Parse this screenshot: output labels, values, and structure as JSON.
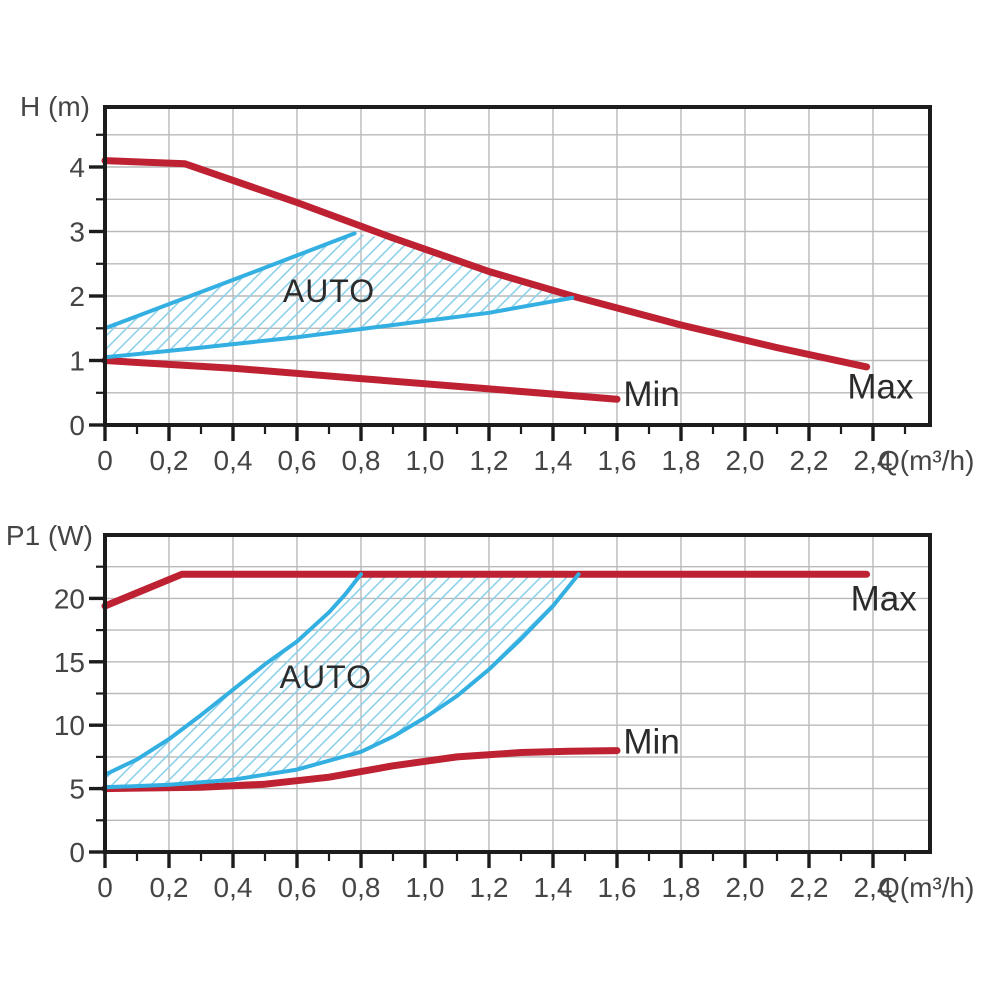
{
  "colors": {
    "curve_red": "#BE2132",
    "auto_blue": "#33AFE1",
    "hatch_blue": "#8FD0EA",
    "grid_gray": "#B9B9B9",
    "axis_black": "#1C1C1C",
    "label_gray": "#454545",
    "annotation_dark": "#2B2B2B"
  },
  "chart_data": [
    {
      "type": "line",
      "ylabel": "H (m)",
      "xlabel": "Q(m³/h)",
      "xlim": [
        0,
        2.58
      ],
      "ylim": [
        0,
        4.93
      ],
      "grid": true,
      "x_axis": {
        "major_labels": [
          "0",
          "0,2",
          "0,4",
          "0,6",
          "0,8",
          "1,0",
          "1,2",
          "1,4",
          "1,6",
          "1,8",
          "2,0",
          "2,2",
          "2,4"
        ],
        "major_step": 0.2,
        "minor_step": 0.1,
        "max_minor": 2.5
      },
      "y_axis": {
        "major_labels": [
          "0",
          "1",
          "2",
          "3",
          "4"
        ],
        "major_step": 1,
        "minor_step": 0.5,
        "max_minor": 4.5
      },
      "series": [
        {
          "name": "Max",
          "color_key": "red",
          "points": [
            [
              0,
              4.1
            ],
            [
              0.25,
              4.05
            ],
            [
              0.6,
              3.45
            ],
            [
              0.9,
              2.9
            ],
            [
              1.2,
              2.38
            ],
            [
              1.46,
              2.0
            ],
            [
              1.8,
              1.55
            ],
            [
              2.1,
              1.2
            ],
            [
              2.38,
              0.9
            ]
          ]
        },
        {
          "name": "Min",
          "color_key": "red",
          "points": [
            [
              0,
              1.0
            ],
            [
              0.4,
              0.88
            ],
            [
              0.8,
              0.72
            ],
            [
              1.2,
              0.56
            ],
            [
              1.6,
              0.4
            ]
          ]
        },
        {
          "name": "Auto-upper",
          "color_key": "blue",
          "points": [
            [
              0,
              1.5
            ],
            [
              0.4,
              2.25
            ],
            [
              0.78,
              2.97
            ]
          ]
        },
        {
          "name": "Auto-lower",
          "color_key": "blue",
          "points": [
            [
              0,
              1.05
            ],
            [
              0.3,
              1.2
            ],
            [
              0.6,
              1.36
            ],
            [
              0.9,
              1.55
            ],
            [
              1.2,
              1.74
            ],
            [
              1.46,
              1.97
            ]
          ]
        }
      ],
      "auto_region": [
        [
          0,
          1.5
        ],
        [
          0.4,
          2.25
        ],
        [
          0.78,
          2.97
        ],
        [
          0.9,
          2.88
        ],
        [
          1.2,
          2.38
        ],
        [
          1.46,
          2.0
        ],
        [
          1.2,
          1.74
        ],
        [
          0.9,
          1.55
        ],
        [
          0.6,
          1.36
        ],
        [
          0.3,
          1.2
        ],
        [
          0,
          1.05
        ]
      ],
      "annotations": [
        {
          "text": "AUTO",
          "q": 0.7,
          "v": 2.08,
          "anchor": "middle",
          "size": "auto"
        },
        {
          "text": "Min",
          "q": 1.62,
          "v": 0.48,
          "anchor": "start",
          "size": "minmax"
        },
        {
          "text": "Max",
          "q": 2.32,
          "v": 0.6,
          "anchor": "start",
          "size": "minmax"
        }
      ]
    },
    {
      "type": "line",
      "ylabel": "P1 (W)",
      "xlabel": "Q(m³/h)",
      "xlim": [
        0,
        2.58
      ],
      "ylim": [
        0,
        25
      ],
      "grid": true,
      "x_axis": {
        "major_labels": [
          "0",
          "0,2",
          "0,4",
          "0,6",
          "0,8",
          "1,0",
          "1,2",
          "1,4",
          "1,6",
          "1,8",
          "2,0",
          "2,2",
          "2,4"
        ],
        "major_step": 0.2,
        "minor_step": 0.1,
        "max_minor": 2.5
      },
      "y_axis": {
        "major_labels": [
          "0",
          "5",
          "10",
          "15",
          "20"
        ],
        "major_step": 5,
        "minor_step": 2.5,
        "max_minor": 22.5
      },
      "series": [
        {
          "name": "Max",
          "color_key": "red",
          "points": [
            [
              0,
              19.4
            ],
            [
              0.24,
              21.9
            ],
            [
              2.38,
              21.9
            ]
          ]
        },
        {
          "name": "Min",
          "color_key": "red",
          "points": [
            [
              0,
              5.0
            ],
            [
              0.3,
              5.1
            ],
            [
              0.5,
              5.35
            ],
            [
              0.7,
              5.9
            ],
            [
              0.9,
              6.8
            ],
            [
              1.1,
              7.5
            ],
            [
              1.3,
              7.85
            ],
            [
              1.45,
              7.95
            ],
            [
              1.6,
              8.0
            ]
          ]
        },
        {
          "name": "Auto-upper",
          "color_key": "blue",
          "points": [
            [
              0,
              6.1
            ],
            [
              0.1,
              7.3
            ],
            [
              0.2,
              8.9
            ],
            [
              0.3,
              10.8
            ],
            [
              0.4,
              12.8
            ],
            [
              0.5,
              14.8
            ],
            [
              0.6,
              16.6
            ],
            [
              0.7,
              18.9
            ],
            [
              0.75,
              20.3
            ],
            [
              0.8,
              21.9
            ]
          ]
        },
        {
          "name": "Auto-lower",
          "color_key": "blue",
          "points": [
            [
              0,
              5.1
            ],
            [
              0.2,
              5.3
            ],
            [
              0.4,
              5.7
            ],
            [
              0.6,
              6.5
            ],
            [
              0.8,
              7.9
            ],
            [
              0.9,
              9.1
            ],
            [
              1.0,
              10.6
            ],
            [
              1.1,
              12.3
            ],
            [
              1.2,
              14.4
            ],
            [
              1.3,
              16.8
            ],
            [
              1.4,
              19.4
            ],
            [
              1.48,
              21.9
            ]
          ]
        }
      ],
      "auto_region": [
        [
          0,
          6.1
        ],
        [
          0.1,
          7.3
        ],
        [
          0.2,
          8.9
        ],
        [
          0.3,
          10.8
        ],
        [
          0.4,
          12.8
        ],
        [
          0.5,
          14.8
        ],
        [
          0.6,
          16.6
        ],
        [
          0.7,
          18.9
        ],
        [
          0.75,
          20.3
        ],
        [
          0.8,
          21.9
        ],
        [
          1.48,
          21.9
        ],
        [
          1.4,
          19.4
        ],
        [
          1.3,
          16.8
        ],
        [
          1.2,
          14.4
        ],
        [
          1.1,
          12.3
        ],
        [
          1.0,
          10.6
        ],
        [
          0.9,
          9.1
        ],
        [
          0.8,
          7.9
        ],
        [
          0.6,
          6.5
        ],
        [
          0.4,
          5.7
        ],
        [
          0.2,
          5.3
        ],
        [
          0,
          5.1
        ]
      ],
      "annotations": [
        {
          "text": "AUTO",
          "q": 0.69,
          "v": 13.8,
          "anchor": "middle",
          "size": "auto"
        },
        {
          "text": "Max",
          "q": 2.33,
          "v": 20.0,
          "anchor": "start",
          "size": "minmax"
        },
        {
          "text": "Min",
          "q": 1.62,
          "v": 8.7,
          "anchor": "start",
          "size": "minmax"
        }
      ]
    }
  ]
}
